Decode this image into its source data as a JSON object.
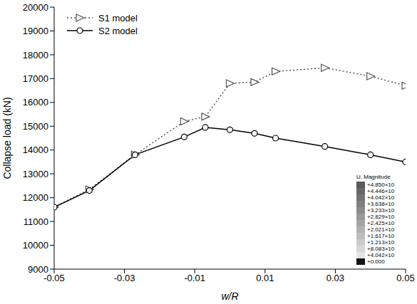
{
  "chart_data": {
    "type": "line",
    "x_label": "w/R",
    "y_label": "Collapse load (kN)",
    "x": [
      -0.05,
      -0.04,
      -0.027,
      -0.013,
      -0.007,
      0,
      0.007,
      0.013,
      0.027,
      0.04,
      0.05
    ],
    "series": [
      {
        "name": "S1 model",
        "color": "#555555",
        "line_style": "dotted",
        "marker": "triangle",
        "values": [
          11600,
          12350,
          13800,
          15200,
          15400,
          16800,
          16850,
          17300,
          17450,
          17100,
          16700
        ]
      },
      {
        "name": "S2 model",
        "color": "#000000",
        "line_style": "solid",
        "marker": "circle",
        "values": [
          11600,
          12300,
          13800,
          14550,
          14950,
          14850,
          14700,
          14500,
          14150,
          13800,
          13500
        ]
      }
    ],
    "xlim": [
      -0.05,
      0.05
    ],
    "xticks": [
      -0.05,
      -0.03,
      -0.01,
      0.01,
      0.03,
      0.05
    ],
    "ylim": [
      9000,
      20000
    ],
    "yticks": [
      9000,
      10000,
      11000,
      12000,
      13000,
      14000,
      15000,
      16000,
      17000,
      18000,
      19000,
      20000
    ],
    "grid": false,
    "legend": "top-left",
    "colorbar": {
      "title": "U, Magnitude",
      "labels": [
        "+4.850×10",
        "+4.446×10",
        "+4.042×10",
        "+3.638×10",
        "+3.233×10",
        "+2.829×10",
        "+2.425×10",
        "+2.021×10",
        "+1.617×10",
        "+1.213×10",
        "+8.083×10",
        "+4.042×10",
        "+0.000"
      ]
    }
  }
}
